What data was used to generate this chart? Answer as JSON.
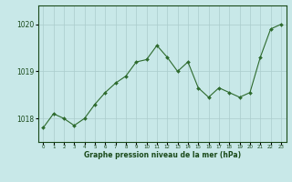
{
  "x": [
    0,
    1,
    2,
    3,
    4,
    5,
    6,
    7,
    8,
    9,
    10,
    11,
    12,
    13,
    14,
    15,
    16,
    17,
    18,
    19,
    20,
    21,
    22,
    23
  ],
  "y": [
    1017.8,
    1018.1,
    1018.0,
    1017.85,
    1018.0,
    1018.3,
    1018.55,
    1018.75,
    1018.9,
    1019.2,
    1019.25,
    1019.55,
    1019.3,
    1019.0,
    1019.2,
    1018.65,
    1018.45,
    1018.65,
    1018.55,
    1018.45,
    1018.55,
    1019.3,
    1019.9,
    1020.0
  ],
  "line_color": "#2d6a2d",
  "marker_color": "#2d6a2d",
  "bg_color": "#c8e8e8",
  "grid_color": "#aacccc",
  "axis_label_color": "#1a4a1a",
  "tick_label_color": "#1a4a1a",
  "xlabel": "Graphe pression niveau de la mer (hPa)",
  "ylim": [
    1017.5,
    1020.4
  ],
  "yticks": [
    1018,
    1019,
    1020
  ],
  "xticks": [
    0,
    1,
    2,
    3,
    4,
    5,
    6,
    7,
    8,
    9,
    10,
    11,
    12,
    13,
    14,
    15,
    16,
    17,
    18,
    19,
    20,
    21,
    22,
    23
  ],
  "figsize": [
    3.2,
    2.0
  ],
  "dpi": 100
}
